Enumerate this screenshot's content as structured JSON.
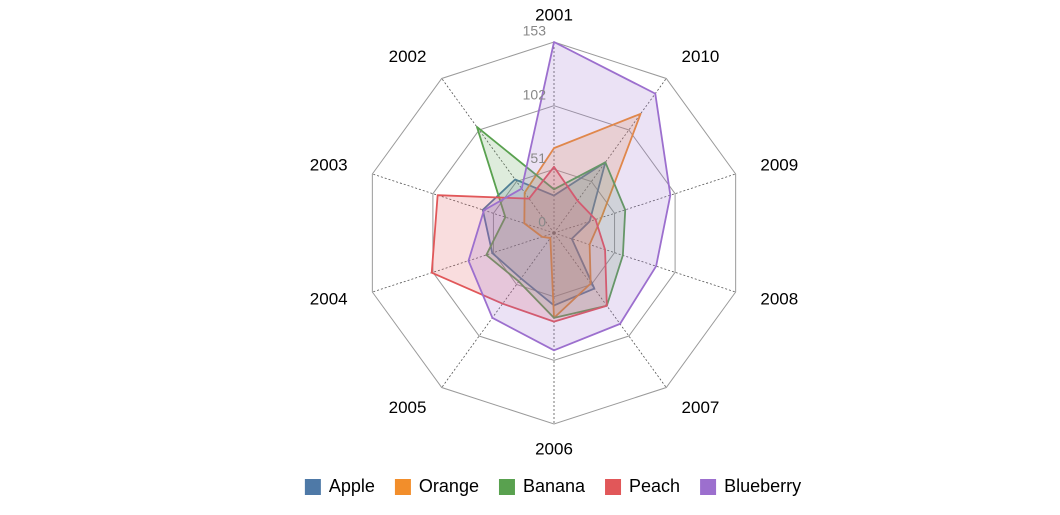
{
  "chart_data": {
    "type": "radar",
    "categories": [
      "2001",
      "2010",
      "2009",
      "2008",
      "2007",
      "2006",
      "2005",
      "2004",
      "2003",
      "2002"
    ],
    "tick_values": [
      0,
      51,
      102,
      153
    ],
    "tick_labels": [
      "0",
      "51",
      "102",
      "153"
    ],
    "max_value": 153,
    "legend_position": "bottom",
    "series": [
      {
        "name": "Apple",
        "color": "#4e79a7",
        "values": [
          30,
          70,
          30,
          15,
          55,
          58,
          45,
          52,
          60,
          53
        ]
      },
      {
        "name": "Orange",
        "color": "#f28e2b",
        "values": [
          68,
          118,
          40,
          30,
          50,
          68,
          5,
          10,
          25,
          40
        ]
      },
      {
        "name": "Banana",
        "color": "#59a14f",
        "values": [
          35,
          70,
          60,
          58,
          72,
          68,
          48,
          57,
          41,
          105
        ]
      },
      {
        "name": "Peach",
        "color": "#e15759",
        "values": [
          53,
          32,
          35,
          43,
          72,
          71,
          70,
          103,
          98,
          34
        ]
      },
      {
        "name": "Blueberry",
        "color": "#9c6fce",
        "values": [
          153,
          138,
          98,
          86,
          90,
          94,
          84,
          72,
          59,
          44
        ]
      }
    ]
  }
}
